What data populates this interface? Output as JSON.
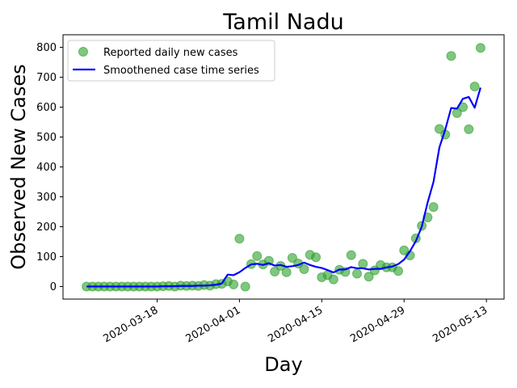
{
  "chart_data": {
    "type": "scatter",
    "title": "Tamil Nadu",
    "xlabel": "Day",
    "ylabel": "Observed New Cases",
    "x_ticks": [
      "2020-03-18",
      "2020-04-01",
      "2020-04-15",
      "2020-04-29",
      "2020-05-13"
    ],
    "y_ticks": [
      0,
      100,
      200,
      300,
      400,
      500,
      600,
      700,
      800
    ],
    "xlim": [
      "2020-03-02",
      "2020-05-16"
    ],
    "ylim": [
      -42,
      842
    ],
    "legend_position": "upper-left",
    "colors": {
      "scatter": "#2ca02c",
      "line": "#0000ff"
    },
    "series": [
      {
        "name": "Reported daily new cases",
        "kind": "scatter",
        "points": [
          {
            "x": "2020-03-06",
            "y": 0
          },
          {
            "x": "2020-03-07",
            "y": 0
          },
          {
            "x": "2020-03-08",
            "y": 0
          },
          {
            "x": "2020-03-09",
            "y": 0
          },
          {
            "x": "2020-03-10",
            "y": 0
          },
          {
            "x": "2020-03-11",
            "y": 0
          },
          {
            "x": "2020-03-12",
            "y": 0
          },
          {
            "x": "2020-03-13",
            "y": 0
          },
          {
            "x": "2020-03-14",
            "y": 0
          },
          {
            "x": "2020-03-15",
            "y": 0
          },
          {
            "x": "2020-03-16",
            "y": 0
          },
          {
            "x": "2020-03-17",
            "y": 0
          },
          {
            "x": "2020-03-18",
            "y": 0
          },
          {
            "x": "2020-03-19",
            "y": 1
          },
          {
            "x": "2020-03-20",
            "y": 2
          },
          {
            "x": "2020-03-21",
            "y": 0
          },
          {
            "x": "2020-03-22",
            "y": 3
          },
          {
            "x": "2020-03-23",
            "y": 2
          },
          {
            "x": "2020-03-24",
            "y": 3
          },
          {
            "x": "2020-03-25",
            "y": 2
          },
          {
            "x": "2020-03-26",
            "y": 5
          },
          {
            "x": "2020-03-27",
            "y": 3
          },
          {
            "x": "2020-03-28",
            "y": 8
          },
          {
            "x": "2020-03-29",
            "y": 9
          },
          {
            "x": "2020-03-30",
            "y": 17
          },
          {
            "x": "2020-03-31",
            "y": 7
          },
          {
            "x": "2020-04-01",
            "y": 160
          },
          {
            "x": "2020-04-02",
            "y": 0
          },
          {
            "x": "2020-04-03",
            "y": 75
          },
          {
            "x": "2020-04-04",
            "y": 102
          },
          {
            "x": "2020-04-05",
            "y": 74
          },
          {
            "x": "2020-04-06",
            "y": 86
          },
          {
            "x": "2020-04-07",
            "y": 50
          },
          {
            "x": "2020-04-08",
            "y": 69
          },
          {
            "x": "2020-04-09",
            "y": 48
          },
          {
            "x": "2020-04-10",
            "y": 96
          },
          {
            "x": "2020-04-11",
            "y": 77
          },
          {
            "x": "2020-04-12",
            "y": 58
          },
          {
            "x": "2020-04-13",
            "y": 106
          },
          {
            "x": "2020-04-14",
            "y": 98
          },
          {
            "x": "2020-04-15",
            "y": 31
          },
          {
            "x": "2020-04-16",
            "y": 38
          },
          {
            "x": "2020-04-17",
            "y": 24
          },
          {
            "x": "2020-04-18",
            "y": 56
          },
          {
            "x": "2020-04-19",
            "y": 49
          },
          {
            "x": "2020-04-20",
            "y": 105
          },
          {
            "x": "2020-04-21",
            "y": 43
          },
          {
            "x": "2020-04-22",
            "y": 76
          },
          {
            "x": "2020-04-23",
            "y": 33
          },
          {
            "x": "2020-04-24",
            "y": 54
          },
          {
            "x": "2020-04-25",
            "y": 72
          },
          {
            "x": "2020-04-26",
            "y": 64
          },
          {
            "x": "2020-04-27",
            "y": 64
          },
          {
            "x": "2020-04-28",
            "y": 52
          },
          {
            "x": "2020-04-29",
            "y": 121
          },
          {
            "x": "2020-04-30",
            "y": 104
          },
          {
            "x": "2020-05-01",
            "y": 161
          },
          {
            "x": "2020-05-02",
            "y": 203
          },
          {
            "x": "2020-05-03",
            "y": 231
          },
          {
            "x": "2020-05-04",
            "y": 266
          },
          {
            "x": "2020-05-05",
            "y": 527
          },
          {
            "x": "2020-05-06",
            "y": 508
          },
          {
            "x": "2020-05-07",
            "y": 771
          },
          {
            "x": "2020-05-08",
            "y": 580
          },
          {
            "x": "2020-05-09",
            "y": 600
          },
          {
            "x": "2020-05-10",
            "y": 526
          },
          {
            "x": "2020-05-11",
            "y": 669
          },
          {
            "x": "2020-05-12",
            "y": 798
          }
        ]
      },
      {
        "name": "Smoothened case time series",
        "kind": "line",
        "points": [
          {
            "x": "2020-03-06",
            "y": 0
          },
          {
            "x": "2020-03-07",
            "y": 0
          },
          {
            "x": "2020-03-08",
            "y": 0
          },
          {
            "x": "2020-03-09",
            "y": 0
          },
          {
            "x": "2020-03-10",
            "y": 0
          },
          {
            "x": "2020-03-11",
            "y": 0
          },
          {
            "x": "2020-03-12",
            "y": 0
          },
          {
            "x": "2020-03-13",
            "y": 0
          },
          {
            "x": "2020-03-14",
            "y": 0
          },
          {
            "x": "2020-03-15",
            "y": 0
          },
          {
            "x": "2020-03-16",
            "y": 0
          },
          {
            "x": "2020-03-17",
            "y": 0
          },
          {
            "x": "2020-03-18",
            "y": 0
          },
          {
            "x": "2020-03-19",
            "y": 1
          },
          {
            "x": "2020-03-20",
            "y": 1
          },
          {
            "x": "2020-03-21",
            "y": 1
          },
          {
            "x": "2020-03-22",
            "y": 2
          },
          {
            "x": "2020-03-23",
            "y": 2
          },
          {
            "x": "2020-03-24",
            "y": 2
          },
          {
            "x": "2020-03-25",
            "y": 3
          },
          {
            "x": "2020-03-26",
            "y": 3
          },
          {
            "x": "2020-03-27",
            "y": 4
          },
          {
            "x": "2020-03-28",
            "y": 6
          },
          {
            "x": "2020-03-29",
            "y": 10
          },
          {
            "x": "2020-03-30",
            "y": 40
          },
          {
            "x": "2020-03-31",
            "y": 38
          },
          {
            "x": "2020-04-01",
            "y": 48
          },
          {
            "x": "2020-04-02",
            "y": 62
          },
          {
            "x": "2020-04-03",
            "y": 74
          },
          {
            "x": "2020-04-04",
            "y": 76
          },
          {
            "x": "2020-04-05",
            "y": 72
          },
          {
            "x": "2020-04-06",
            "y": 78
          },
          {
            "x": "2020-04-07",
            "y": 70
          },
          {
            "x": "2020-04-08",
            "y": 72
          },
          {
            "x": "2020-04-09",
            "y": 66
          },
          {
            "x": "2020-04-10",
            "y": 68
          },
          {
            "x": "2020-04-11",
            "y": 72
          },
          {
            "x": "2020-04-12",
            "y": 80
          },
          {
            "x": "2020-04-13",
            "y": 72
          },
          {
            "x": "2020-04-14",
            "y": 66
          },
          {
            "x": "2020-04-15",
            "y": 62
          },
          {
            "x": "2020-04-16",
            "y": 55
          },
          {
            "x": "2020-04-17",
            "y": 47
          },
          {
            "x": "2020-04-18",
            "y": 57
          },
          {
            "x": "2020-04-19",
            "y": 57
          },
          {
            "x": "2020-04-20",
            "y": 65
          },
          {
            "x": "2020-04-21",
            "y": 61
          },
          {
            "x": "2020-04-22",
            "y": 61
          },
          {
            "x": "2020-04-23",
            "y": 57
          },
          {
            "x": "2020-04-24",
            "y": 59
          },
          {
            "x": "2020-04-25",
            "y": 59
          },
          {
            "x": "2020-04-26",
            "y": 64
          },
          {
            "x": "2020-04-27",
            "y": 67
          },
          {
            "x": "2020-04-28",
            "y": 75
          },
          {
            "x": "2020-04-29",
            "y": 90
          },
          {
            "x": "2020-04-30",
            "y": 118
          },
          {
            "x": "2020-05-01",
            "y": 152
          },
          {
            "x": "2020-05-02",
            "y": 200
          },
          {
            "x": "2020-05-03",
            "y": 281
          },
          {
            "x": "2020-05-04",
            "y": 350
          },
          {
            "x": "2020-05-05",
            "y": 465
          },
          {
            "x": "2020-05-06",
            "y": 525
          },
          {
            "x": "2020-05-07",
            "y": 597
          },
          {
            "x": "2020-05-08",
            "y": 595
          },
          {
            "x": "2020-05-09",
            "y": 628
          },
          {
            "x": "2020-05-10",
            "y": 634
          },
          {
            "x": "2020-05-11",
            "y": 598
          },
          {
            "x": "2020-05-12",
            "y": 665
          }
        ]
      }
    ]
  }
}
